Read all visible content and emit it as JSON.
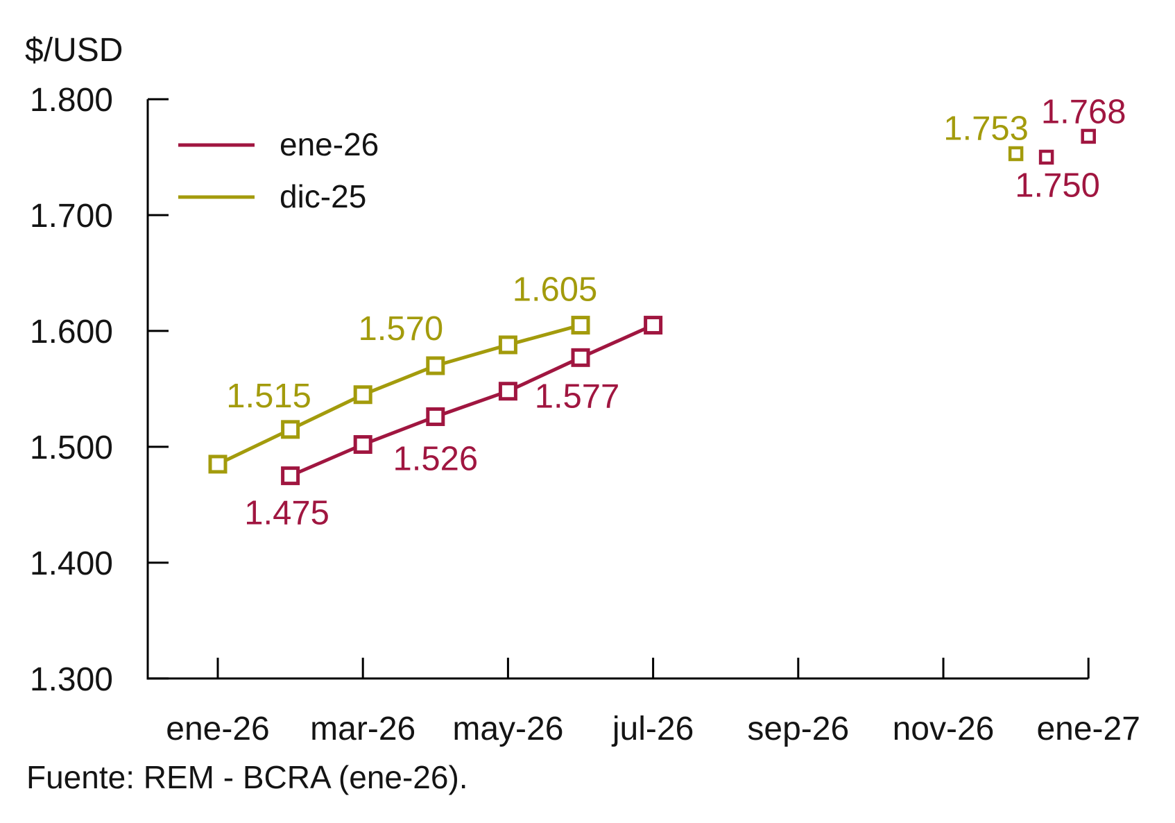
{
  "source_note": "Fuente: REM - BCRA (ene-26).",
  "chart_data": {
    "type": "line",
    "title": "",
    "ylabel": "$/USD",
    "xlabel": "",
    "grid": false,
    "legend_position": "top-left-inside",
    "marker_style": "open-square",
    "ylim": [
      1.3,
      1.8
    ],
    "ytick_values": [
      1.8,
      1.7,
      1.6,
      1.5,
      1.4,
      1.3
    ],
    "ytick_labels": [
      "1.800",
      "1.700",
      "1.600",
      "1.500",
      "1.400",
      "1.300"
    ],
    "xtick_months": [
      0,
      2,
      4,
      6,
      8,
      10,
      12
    ],
    "xtick_labels": [
      "ene-26",
      "mar-26",
      "may-26",
      "jul-26",
      "sep-26",
      "nov-26",
      "ene-27"
    ],
    "series": [
      {
        "name": "ene-26",
        "color": "#A01640",
        "connected_points": [
          {
            "month_label": "feb-26",
            "m": 1,
            "value": 1.475,
            "label": "1.475"
          },
          {
            "month_label": "mar-26",
            "m": 2,
            "value": 1.502
          },
          {
            "month_label": "abr-26",
            "m": 3,
            "value": 1.526,
            "label": "1.526"
          },
          {
            "month_label": "may-26",
            "m": 4,
            "value": 1.548
          },
          {
            "month_label": "jun-26",
            "m": 5,
            "value": 1.577,
            "label": "1.577"
          },
          {
            "month_label": "jul-26",
            "m": 6,
            "value": 1.605
          }
        ],
        "isolated_points": [
          {
            "month_label": "dic-26",
            "m": 11,
            "value": 1.75,
            "label": "1.750"
          },
          {
            "month_label": "ene-27",
            "m": 12,
            "value": 1.768,
            "label": "1.768"
          }
        ]
      },
      {
        "name": "dic-25",
        "color": "#A39B0C",
        "connected_points": [
          {
            "month_label": "ene-26",
            "m": 0,
            "value": 1.485
          },
          {
            "month_label": "feb-26",
            "m": 1,
            "value": 1.515,
            "label": "1.515"
          },
          {
            "month_label": "mar-26",
            "m": 2,
            "value": 1.545
          },
          {
            "month_label": "abr-26",
            "m": 3,
            "value": 1.57,
            "label": "1.570"
          },
          {
            "month_label": "may-26",
            "m": 4,
            "value": 1.588
          },
          {
            "month_label": "jun-26",
            "m": 5,
            "value": 1.605,
            "label": "1.605"
          }
        ],
        "isolated_points": [
          {
            "month_label": "dic-26",
            "m": 11,
            "value": 1.753,
            "label": "1.753"
          }
        ]
      }
    ]
  }
}
